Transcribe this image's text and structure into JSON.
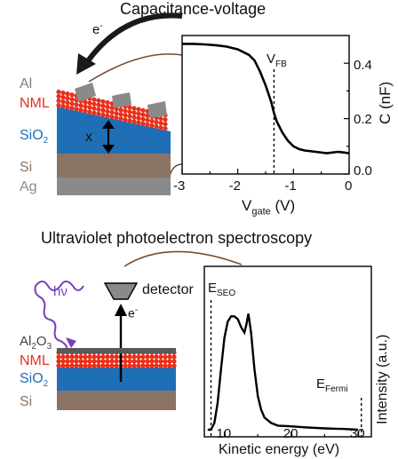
{
  "top": {
    "title": "Capacitance-voltage",
    "electron_label": "e",
    "electron_sup": "-",
    "layers": [
      {
        "label": "Al",
        "sub": "",
        "after": "",
        "color": "#7f7f7f"
      },
      {
        "label": "NML",
        "sub": "",
        "after": "",
        "color": "#e8301c"
      },
      {
        "label": "SiO",
        "sub": "2",
        "after": "",
        "color": "#1f6fb6"
      },
      {
        "label": "Si",
        "sub": "",
        "after": "",
        "color": "#8c7464"
      },
      {
        "label": "Ag",
        "sub": "",
        "after": "",
        "color": "#8a8a8a"
      }
    ],
    "thickness_label": "x",
    "plot": {
      "xlabel_main": "V",
      "xlabel_sub": "gate",
      "xlabel_unit": "(V)",
      "ylabel": "C (nF)",
      "vline_label": "V",
      "vline_sub": "FB",
      "xticks": [
        "-3",
        "-2",
        "-1",
        "0"
      ],
      "yticks": [
        "0.0",
        "0.2",
        "0.4"
      ]
    }
  },
  "bottom": {
    "title": "Ultraviolet photoelectron spectroscopy",
    "photon_label": "hν",
    "detector_label": "detector",
    "electron_label": "e",
    "electron_sup": "-",
    "layers": [
      {
        "label": "Al",
        "sub": "2",
        "after": "O",
        "sub2": "3",
        "color": "#595959"
      },
      {
        "label": "NML",
        "sub": "",
        "after": "",
        "sub2": "",
        "color": "#e8301c"
      },
      {
        "label": "SiO",
        "sub": "2",
        "after": "",
        "sub2": "",
        "color": "#1f6fb6"
      },
      {
        "label": "Si",
        "sub": "",
        "after": "",
        "sub2": "",
        "color": "#8c7464"
      }
    ],
    "plot": {
      "xlabel": "Kinetic energy (eV)",
      "ylabel": "Intensity (a.u.)",
      "sec_label": "E",
      "sec_sub": "SEO",
      "fermi_label": "E",
      "fermi_sub": "Fermi",
      "xticks": [
        "10",
        "20",
        "30"
      ]
    }
  },
  "chart_data": [
    {
      "type": "line",
      "xlabel": "Vgate (V)",
      "ylabel": "C (nF)",
      "xlim": [
        -3,
        0
      ],
      "ylim": [
        0.0,
        0.5
      ],
      "x": [
        -3.0,
        -2.8,
        -2.6,
        -2.4,
        -2.2,
        -2.0,
        -1.8,
        -1.7,
        -1.6,
        -1.5,
        -1.4,
        -1.35,
        -1.3,
        -1.2,
        -1.1,
        -1.0,
        -0.9,
        -0.8,
        -0.6,
        -0.4,
        -0.2,
        -0.1,
        0.0
      ],
      "y": [
        0.47,
        0.47,
        0.468,
        0.465,
        0.46,
        0.45,
        0.43,
        0.41,
        0.37,
        0.32,
        0.26,
        0.22,
        0.19,
        0.15,
        0.12,
        0.1,
        0.09,
        0.085,
        0.08,
        0.075,
        0.08,
        0.078,
        0.075
      ],
      "vline": {
        "label": "VFB",
        "x": -1.35
      },
      "grid": false
    },
    {
      "type": "line",
      "xlabel": "Kinetic energy (eV)",
      "ylabel": "Intensity (a.u.)",
      "xlim": [
        7,
        32
      ],
      "ylim": [
        0,
        1
      ],
      "x": [
        7.5,
        8.0,
        8.5,
        9.0,
        9.5,
        10.0,
        10.5,
        11.0,
        11.5,
        12.0,
        12.5,
        13.0,
        13.3,
        13.6,
        14.0,
        14.5,
        15.0,
        15.5,
        16.0,
        17.0,
        18.0,
        20.0,
        22.0,
        25.0,
        28.0,
        30.0
      ],
      "y": [
        0.0,
        0.0,
        0.05,
        0.2,
        0.45,
        0.68,
        0.8,
        0.84,
        0.84,
        0.82,
        0.76,
        0.72,
        0.78,
        0.86,
        0.72,
        0.45,
        0.25,
        0.15,
        0.09,
        0.05,
        0.03,
        0.025,
        0.018,
        0.01,
        0.005,
        0.0
      ],
      "vlines": [
        {
          "label": "ESEO",
          "x": 8.0
        },
        {
          "label": "EFermi",
          "x": 30.5
        }
      ],
      "grid": false
    }
  ]
}
